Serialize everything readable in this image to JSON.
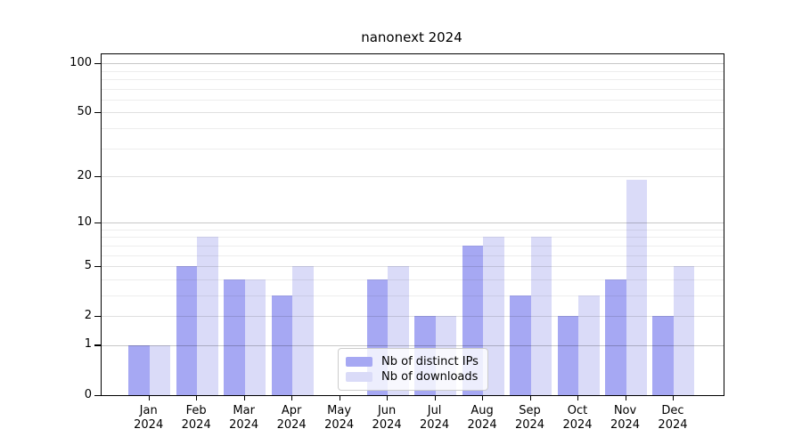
{
  "chart_data": {
    "type": "bar",
    "title": "nanonext 2024",
    "categories": [
      "Jan 2024",
      "Feb 2024",
      "Mar 2024",
      "Apr 2024",
      "May 2024",
      "Jun 2024",
      "Jul 2024",
      "Aug 2024",
      "Sep 2024",
      "Oct 2024",
      "Nov 2024",
      "Dec 2024"
    ],
    "series": [
      {
        "name": "Nb of distinct IPs",
        "color": "#a6a8f3",
        "values": [
          1,
          5,
          4,
          3,
          0,
          4,
          2,
          7,
          3,
          2,
          4,
          2
        ]
      },
      {
        "name": "Nb of downloads",
        "color": "#dadbf8",
        "values": [
          1,
          8,
          4,
          5,
          0,
          5,
          2,
          8,
          8,
          3,
          19,
          5
        ]
      }
    ],
    "xlabel": "",
    "ylabel": "",
    "yscale": "log1p",
    "ylim": [
      0,
      113
    ],
    "y_ticks": [
      0,
      1,
      2,
      5,
      10,
      20,
      50,
      100
    ],
    "y_minor_gridlines": [
      3,
      4,
      6,
      7,
      8,
      9,
      30,
      40,
      60,
      70,
      80,
      90
    ],
    "grid": true,
    "legend_position": "bottom-center",
    "style": {
      "background": "#ffffff",
      "axis_color": "#000000",
      "grid_decade_color": "rgba(0,0,0,0.22)",
      "grid_major_color": "rgba(0,0,0,0.12)",
      "grid_minor_color": "rgba(0,0,0,0.07)"
    }
  }
}
